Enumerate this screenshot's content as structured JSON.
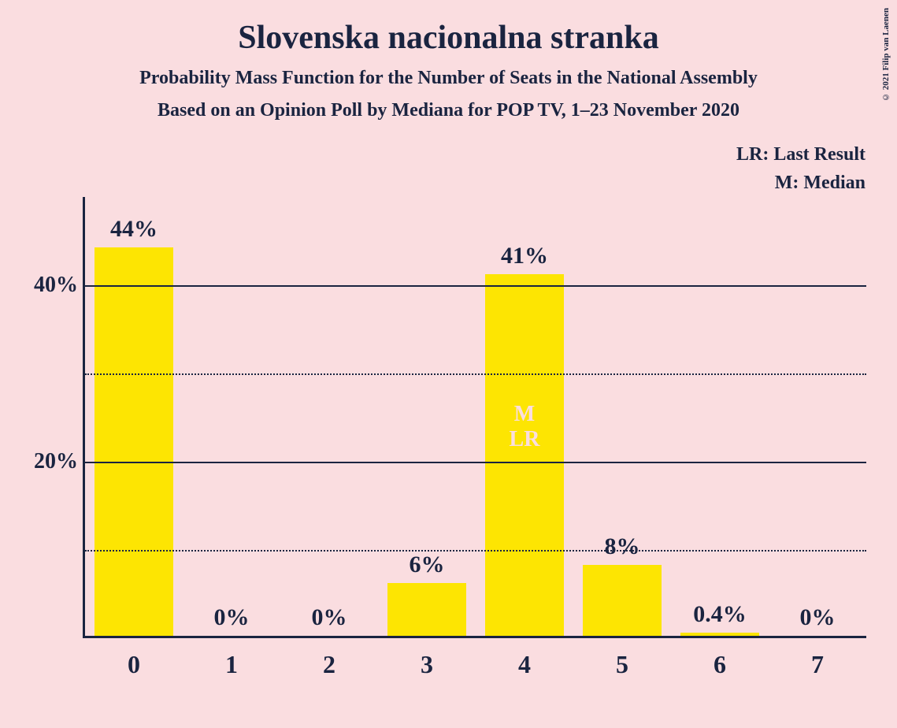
{
  "title": "Slovenska nacionalna stranka",
  "subtitle": "Probability Mass Function for the Number of Seats in the National Assembly",
  "source": "Based on an Opinion Poll by Mediana for POP TV, 1–23 November 2020",
  "legend": {
    "lr": "LR: Last Result",
    "m": "M: Median"
  },
  "copyright": "© 2021 Filip van Laenen",
  "chart": {
    "type": "bar",
    "categories": [
      "0",
      "1",
      "2",
      "3",
      "4",
      "5",
      "6",
      "7"
    ],
    "values": [
      44,
      0,
      0,
      6,
      41,
      8,
      0.4,
      0
    ],
    "value_labels": [
      "44%",
      "0%",
      "0%",
      "6%",
      "41%",
      "8%",
      "0.4%",
      "0%"
    ],
    "bar_color": "#fde502",
    "background_color": "#fadde0",
    "axis_color": "#1a2440",
    "text_color": "#1a2440",
    "annotation_color": "#fadde0",
    "y_max": 50,
    "y_ticks_major": [
      20,
      40
    ],
    "y_ticks_minor": [
      10,
      30
    ],
    "y_tick_labels": [
      "20%",
      "40%"
    ],
    "annotations": [
      {
        "index": 4,
        "lines": [
          "M",
          "LR"
        ],
        "position_pct_from_top": 0.47
      }
    ],
    "title_fontsize": 42,
    "subtitle_fontsize": 24,
    "label_fontsize": 30,
    "tick_fontsize": 32,
    "bar_width_ratio": 0.8
  }
}
